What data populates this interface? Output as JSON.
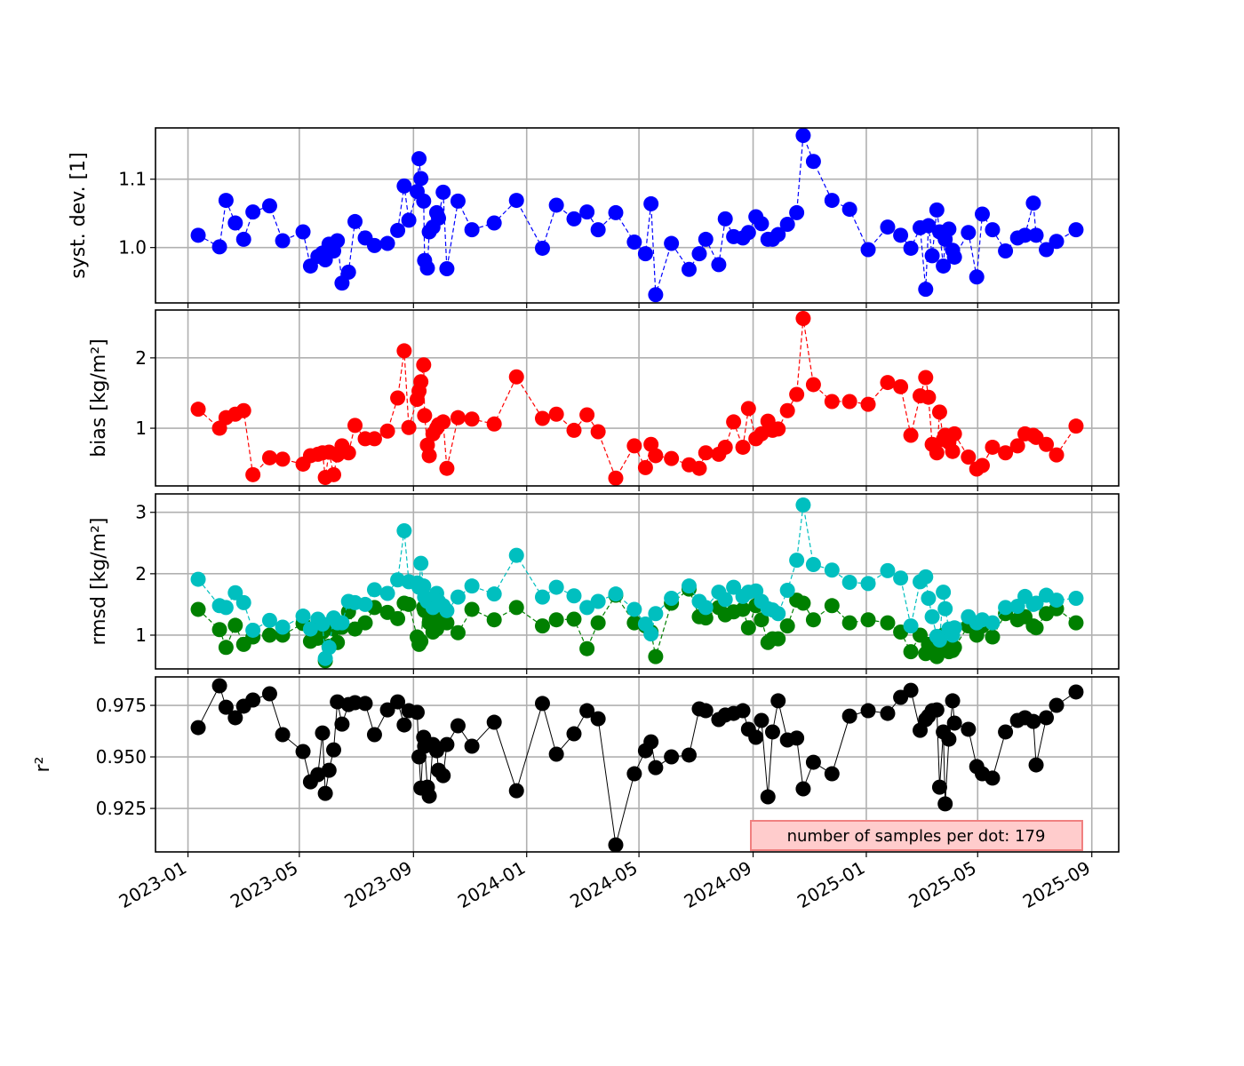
{
  "chart_data": {
    "type": "line",
    "x_unit": "days since 2023-01-01",
    "xlim_days": [
      -35,
      1003
    ],
    "x_tick_days": [
      0,
      120,
      243,
      365,
      486,
      609,
      731,
      851,
      974
    ],
    "x_tick_labels": [
      "2023-01",
      "2023-05",
      "2023-09",
      "2024-01",
      "2024-05",
      "2024-09",
      "2025-01",
      "2025-05",
      "2025-09"
    ],
    "grid": true,
    "x": [
      11,
      34,
      41,
      51,
      60,
      70,
      88,
      102,
      124,
      132,
      140,
      145,
      148,
      152,
      157,
      161,
      166,
      173,
      180,
      191,
      201,
      215,
      226,
      233,
      238,
      247,
      249,
      251,
      254,
      255,
      258,
      260,
      264,
      268,
      270,
      275,
      279,
      291,
      306,
      330,
      354,
      382,
      397,
      416,
      430,
      442,
      461,
      481,
      493,
      499,
      504,
      521,
      540,
      551,
      558,
      572,
      579,
      588,
      598,
      604,
      612,
      618,
      625,
      630,
      636,
      646,
      656,
      663,
      674,
      694,
      713,
      733,
      754,
      768,
      779,
      789,
      795,
      798,
      802,
      807,
      810,
      814,
      816,
      820,
      824,
      826,
      841,
      850,
      856,
      867,
      881,
      894,
      902,
      911,
      914,
      925,
      936,
      957
    ],
    "panels": [
      {
        "ylabel": "syst. dev. [1]",
        "ylim": [
          0.919,
          1.175
        ],
        "y_ticks": [
          1.0,
          1.1
        ],
        "y_tick_labels": [
          "1.0",
          "1.1"
        ],
        "series": [
          {
            "name": "syst. dev.",
            "color": "#0000ff",
            "line": "dashed",
            "values": [
              1.018,
              1.001,
              1.069,
              1.036,
              1.012,
              1.052,
              1.061,
              1.01,
              1.023,
              0.973,
              0.987,
              0.992,
              0.982,
              1.005,
              0.995,
              1.01,
              0.948,
              0.964,
              1.038,
              1.014,
              1.003,
              1.006,
              1.025,
              1.09,
              1.04,
              1.082,
              1.13,
              1.101,
              1.068,
              0.981,
              0.97,
              1.023,
              1.03,
              1.051,
              1.043,
              1.081,
              0.969,
              1.068,
              1.026,
              1.036,
              1.069,
              0.999,
              1.062,
              1.042,
              1.052,
              1.026,
              1.051,
              1.008,
              0.991,
              1.064,
              0.931,
              1.006,
              0.968,
              0.991,
              1.012,
              0.975,
              1.042,
              1.016,
              1.014,
              1.022,
              1.045,
              1.035,
              1.012,
              1.012,
              1.019,
              1.034,
              1.051,
              1.164,
              1.126,
              1.069,
              1.056,
              0.997,
              1.03,
              1.018,
              0.999,
              1.029,
              0.939,
              1.032,
              0.988,
              1.055,
              1.023,
              0.973,
              1.012,
              1.027,
              0.996,
              0.986,
              1.022,
              0.957,
              1.049,
              1.026,
              0.995,
              1.014,
              1.018,
              1.065,
              1.018,
              0.997,
              1.009,
              1.026
            ]
          }
        ]
      },
      {
        "ylabel": "bias [kg/m²]",
        "ylim": [
          0.18,
          2.68
        ],
        "y_ticks": [
          1,
          2
        ],
        "y_tick_labels": [
          "1",
          "2"
        ],
        "series": [
          {
            "name": "bias",
            "color": "#ff0000",
            "line": "dashed",
            "values": [
              1.27,
              1.0,
              1.15,
              1.2,
              1.25,
              0.34,
              0.58,
              0.56,
              0.49,
              0.61,
              0.63,
              0.65,
              0.3,
              0.66,
              0.34,
              0.62,
              0.75,
              0.65,
              1.04,
              0.85,
              0.85,
              0.96,
              1.43,
              2.1,
              1.01,
              1.41,
              1.53,
              1.66,
              1.9,
              1.18,
              0.76,
              0.61,
              0.92,
              1.0,
              1.05,
              1.09,
              0.43,
              1.15,
              1.13,
              1.06,
              1.73,
              1.14,
              1.2,
              0.97,
              1.19,
              0.95,
              0.29,
              0.75,
              0.44,
              0.77,
              0.61,
              0.57,
              0.48,
              0.43,
              0.65,
              0.63,
              0.73,
              1.09,
              0.73,
              1.28,
              0.85,
              0.92,
              1.1,
              0.97,
              0.99,
              1.25,
              1.48,
              2.56,
              1.62,
              1.38,
              1.38,
              1.34,
              1.65,
              1.59,
              0.9,
              1.46,
              1.72,
              1.44,
              0.77,
              0.65,
              1.23,
              0.84,
              0.9,
              0.8,
              0.67,
              0.92,
              0.59,
              0.42,
              0.47,
              0.73,
              0.65,
              0.75,
              0.92,
              0.9,
              0.87,
              0.77,
              0.62,
              1.03
            ]
          }
        ]
      },
      {
        "ylabel": "rmsd [kg/m²]",
        "ylim": [
          0.45,
          3.3
        ],
        "y_ticks": [
          1,
          2,
          3
        ],
        "y_tick_labels": [
          "1",
          "2",
          "3"
        ],
        "series": [
          {
            "name": "green",
            "color": "#008000",
            "line": "dashed",
            "values": [
              1.42,
              1.09,
              0.8,
              1.16,
              0.85,
              0.97,
              1.0,
              1.0,
              1.19,
              0.9,
              0.95,
              1.05,
              0.58,
              0.82,
              1.1,
              0.88,
              1.13,
              1.38,
              1.1,
              1.2,
              1.45,
              1.37,
              1.27,
              1.52,
              1.5,
              0.97,
              0.85,
              0.9,
              1.45,
              1.4,
              1.42,
              1.2,
              1.05,
              1.1,
              1.3,
              1.38,
              1.2,
              1.04,
              1.42,
              1.25,
              1.45,
              1.15,
              1.25,
              1.26,
              0.78,
              1.2,
              1.65,
              1.2,
              1.15,
              1.05,
              0.65,
              1.52,
              1.75,
              1.3,
              1.28,
              1.45,
              1.33,
              1.38,
              1.42,
              1.12,
              1.48,
              1.25,
              0.88,
              0.94,
              0.94,
              1.15,
              1.57,
              1.52,
              1.25,
              1.48,
              1.2,
              1.25,
              1.2,
              1.05,
              0.73,
              1.0,
              0.7,
              0.85,
              0.77,
              0.65,
              0.75,
              1.0,
              0.8,
              0.73,
              0.75,
              0.8,
              1.15,
              1.0,
              1.15,
              0.97,
              1.35,
              1.25,
              1.3,
              1.15,
              1.12,
              1.35,
              1.43,
              1.2
            ]
          },
          {
            "name": "cyan",
            "color": "#00bfbf",
            "line": "dashed",
            "values": [
              1.91,
              1.48,
              1.45,
              1.69,
              1.53,
              1.08,
              1.24,
              1.13,
              1.31,
              1.1,
              1.26,
              1.18,
              0.62,
              0.8,
              1.28,
              1.2,
              1.2,
              1.55,
              1.53,
              1.5,
              1.74,
              1.68,
              1.9,
              2.7,
              1.87,
              1.85,
              1.78,
              2.17,
              1.8,
              1.62,
              1.55,
              1.58,
              1.45,
              1.68,
              1.55,
              1.48,
              1.4,
              1.62,
              1.8,
              1.67,
              2.3,
              1.62,
              1.78,
              1.64,
              1.45,
              1.55,
              1.67,
              1.42,
              1.18,
              1.02,
              1.35,
              1.6,
              1.8,
              1.55,
              1.45,
              1.7,
              1.58,
              1.78,
              1.63,
              1.7,
              1.72,
              1.55,
              1.43,
              1.41,
              1.35,
              1.73,
              2.22,
              3.12,
              2.15,
              2.06,
              1.86,
              1.84,
              2.05,
              1.93,
              1.15,
              1.87,
              1.95,
              1.6,
              1.3,
              0.98,
              0.92,
              1.7,
              1.43,
              1.1,
              1.0,
              1.12,
              1.3,
              1.2,
              1.25,
              1.2,
              1.45,
              1.47,
              1.63,
              1.5,
              1.52,
              1.65,
              1.57,
              1.6
            ]
          }
        ]
      },
      {
        "ylabel": "r²",
        "ylim": [
          0.9039,
          0.9888
        ],
        "y_ticks": [
          0.925,
          0.95,
          0.975
        ],
        "y_tick_labels": [
          "0.925",
          "0.950",
          "0.975"
        ],
        "series": [
          {
            "name": "r²",
            "color": "#000000",
            "line": "solid",
            "values": [
              0.9642,
              0.9845,
              0.9741,
              0.969,
              0.9746,
              0.9776,
              0.9806,
              0.9608,
              0.9526,
              0.9379,
              0.9414,
              0.9616,
              0.9323,
              0.9435,
              0.9534,
              0.9767,
              0.9659,
              0.9754,
              0.9763,
              0.9759,
              0.9608,
              0.9728,
              0.9767,
              0.9655,
              0.9724,
              0.9716,
              0.95,
              0.9349,
              0.9595,
              0.9552,
              0.9353,
              0.931,
              0.956,
              0.953,
              0.9435,
              0.9409,
              0.956,
              0.9651,
              0.9552,
              0.9668,
              0.9336,
              0.9759,
              0.9513,
              0.9612,
              0.9724,
              0.9685,
              0.9073,
              0.9418,
              0.953,
              0.9573,
              0.9448,
              0.95,
              0.9509,
              0.9733,
              0.9724,
              0.9681,
              0.9703,
              0.9711,
              0.9724,
              0.9634,
              0.9595,
              0.9677,
              0.9306,
              0.9621,
              0.9772,
              0.9582,
              0.9591,
              0.9345,
              0.9474,
              0.9418,
              0.9698,
              0.9724,
              0.9711,
              0.9789,
              0.9823,
              0.9629,
              0.9681,
              0.9698,
              0.9724,
              0.9728,
              0.9353,
              0.9621,
              0.9272,
              0.9586,
              0.9772,
              0.9664,
              0.9634,
              0.9453,
              0.9418,
              0.9397,
              0.9621,
              0.9677,
              0.969,
              0.9672,
              0.9461,
              0.969,
              0.975,
              0.9815
            ]
          }
        ],
        "annotation": {
          "text": "number of samples per dot: 179",
          "position": "bottom-right",
          "fill": "#ffcccc",
          "edge": "#f08080"
        }
      }
    ]
  }
}
